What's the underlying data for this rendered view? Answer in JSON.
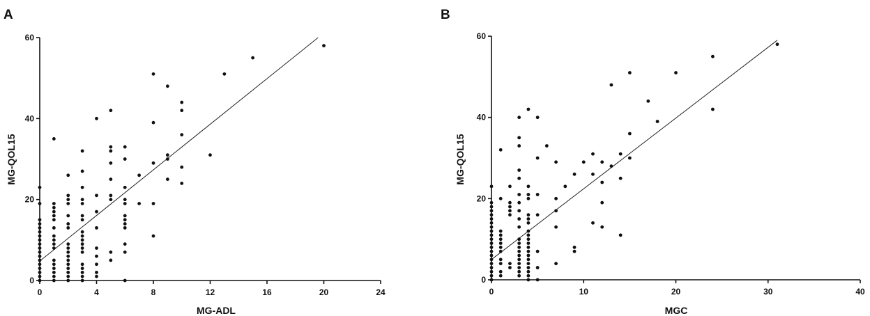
{
  "chart_data": [
    {
      "panel": "A",
      "type": "scatter",
      "xlabel": "MG-ADL",
      "ylabel": "MG-QOL15",
      "xlim": [
        0,
        24
      ],
      "ylim": [
        0,
        60
      ],
      "xticks": [
        0,
        4,
        8,
        12,
        16,
        20,
        24
      ],
      "yticks": [
        0,
        20,
        40,
        60
      ],
      "grid": false,
      "colors": {
        "points": "#111111",
        "line": "#222222"
      },
      "fit_line": {
        "x": [
          0,
          19.6
        ],
        "y": [
          4.8,
          60
        ]
      },
      "points": [
        [
          0,
          0
        ],
        [
          0,
          1
        ],
        [
          0,
          2
        ],
        [
          0,
          3
        ],
        [
          0,
          4
        ],
        [
          0,
          5
        ],
        [
          0,
          6
        ],
        [
          0,
          7
        ],
        [
          0,
          8
        ],
        [
          0,
          9
        ],
        [
          0,
          10
        ],
        [
          0,
          11
        ],
        [
          0,
          12
        ],
        [
          0,
          13
        ],
        [
          0,
          14
        ],
        [
          0,
          15
        ],
        [
          0,
          19
        ],
        [
          0,
          23
        ],
        [
          1,
          0
        ],
        [
          1,
          1
        ],
        [
          1,
          2
        ],
        [
          1,
          3
        ],
        [
          1,
          4
        ],
        [
          1,
          5
        ],
        [
          1,
          8
        ],
        [
          1,
          9
        ],
        [
          1,
          10
        ],
        [
          1,
          11
        ],
        [
          1,
          13
        ],
        [
          1,
          15
        ],
        [
          1,
          16
        ],
        [
          1,
          17
        ],
        [
          1,
          18
        ],
        [
          1,
          19
        ],
        [
          1,
          35
        ],
        [
          2,
          0
        ],
        [
          2,
          1
        ],
        [
          2,
          2
        ],
        [
          2,
          3
        ],
        [
          2,
          4
        ],
        [
          2,
          5
        ],
        [
          2,
          6
        ],
        [
          2,
          7
        ],
        [
          2,
          8
        ],
        [
          2,
          9
        ],
        [
          2,
          13
        ],
        [
          2,
          14
        ],
        [
          2,
          16
        ],
        [
          2,
          19
        ],
        [
          2,
          20
        ],
        [
          2,
          21
        ],
        [
          2,
          26
        ],
        [
          3,
          0
        ],
        [
          3,
          1
        ],
        [
          3,
          2
        ],
        [
          3,
          3
        ],
        [
          3,
          4
        ],
        [
          3,
          7
        ],
        [
          3,
          8
        ],
        [
          3,
          9
        ],
        [
          3,
          10
        ],
        [
          3,
          11
        ],
        [
          3,
          12
        ],
        [
          3,
          15
        ],
        [
          3,
          16
        ],
        [
          3,
          19
        ],
        [
          3,
          20
        ],
        [
          3,
          23
        ],
        [
          3,
          27
        ],
        [
          3,
          32
        ],
        [
          4,
          1
        ],
        [
          4,
          2
        ],
        [
          4,
          4
        ],
        [
          4,
          6
        ],
        [
          4,
          8
        ],
        [
          4,
          13
        ],
        [
          4,
          17
        ],
        [
          4,
          21
        ],
        [
          4,
          40
        ],
        [
          5,
          5
        ],
        [
          5,
          7
        ],
        [
          5,
          20
        ],
        [
          5,
          21
        ],
        [
          5,
          25
        ],
        [
          5,
          29
        ],
        [
          5,
          32
        ],
        [
          5,
          33
        ],
        [
          5,
          42
        ],
        [
          6,
          0
        ],
        [
          6,
          7
        ],
        [
          6,
          9
        ],
        [
          6,
          13
        ],
        [
          6,
          14
        ],
        [
          6,
          15
        ],
        [
          6,
          16
        ],
        [
          6,
          19
        ],
        [
          6,
          20
        ],
        [
          6,
          23
        ],
        [
          6,
          30
        ],
        [
          6,
          33
        ],
        [
          7,
          19
        ],
        [
          7,
          26
        ],
        [
          8,
          11
        ],
        [
          8,
          19
        ],
        [
          8,
          29
        ],
        [
          8,
          39
        ],
        [
          8,
          51
        ],
        [
          9,
          25
        ],
        [
          9,
          30
        ],
        [
          9,
          31
        ],
        [
          9,
          48
        ],
        [
          10,
          24
        ],
        [
          10,
          28
        ],
        [
          10,
          36
        ],
        [
          10,
          42
        ],
        [
          10,
          44
        ],
        [
          12,
          31
        ],
        [
          13,
          51
        ],
        [
          15,
          55
        ],
        [
          20,
          58
        ]
      ]
    },
    {
      "panel": "B",
      "type": "scatter",
      "xlabel": "MGC",
      "ylabel": "MG-QOL15",
      "xlim": [
        0,
        40
      ],
      "ylim": [
        0,
        60
      ],
      "xticks": [
        0,
        10,
        20,
        30,
        40
      ],
      "yticks": [
        0,
        20,
        40,
        60
      ],
      "grid": false,
      "colors": {
        "points": "#111111",
        "line": "#222222"
      },
      "fit_line": {
        "x": [
          0,
          31
        ],
        "y": [
          5,
          59
        ]
      },
      "points": [
        [
          0,
          0
        ],
        [
          0,
          1
        ],
        [
          0,
          2
        ],
        [
          0,
          3
        ],
        [
          0,
          4
        ],
        [
          0,
          5
        ],
        [
          0,
          6
        ],
        [
          0,
          7
        ],
        [
          0,
          8
        ],
        [
          0,
          9
        ],
        [
          0,
          10
        ],
        [
          0,
          11
        ],
        [
          0,
          12
        ],
        [
          0,
          13
        ],
        [
          0,
          14
        ],
        [
          0,
          15
        ],
        [
          0,
          16
        ],
        [
          0,
          17
        ],
        [
          0,
          18
        ],
        [
          0,
          19
        ],
        [
          0,
          23
        ],
        [
          1,
          1
        ],
        [
          1,
          2
        ],
        [
          1,
          4
        ],
        [
          1,
          5
        ],
        [
          1,
          7
        ],
        [
          1,
          8
        ],
        [
          1,
          9
        ],
        [
          1,
          10
        ],
        [
          1,
          11
        ],
        [
          1,
          12
        ],
        [
          1,
          20
        ],
        [
          1,
          32
        ],
        [
          2,
          3
        ],
        [
          2,
          4
        ],
        [
          2,
          16
        ],
        [
          2,
          17
        ],
        [
          2,
          18
        ],
        [
          2,
          19
        ],
        [
          2,
          23
        ],
        [
          3,
          1
        ],
        [
          3,
          2
        ],
        [
          3,
          3
        ],
        [
          3,
          4
        ],
        [
          3,
          5
        ],
        [
          3,
          6
        ],
        [
          3,
          7
        ],
        [
          3,
          8
        ],
        [
          3,
          9
        ],
        [
          3,
          10
        ],
        [
          3,
          13
        ],
        [
          3,
          15
        ],
        [
          3,
          17
        ],
        [
          3,
          19
        ],
        [
          3,
          21
        ],
        [
          3,
          25
        ],
        [
          3,
          27
        ],
        [
          3,
          33
        ],
        [
          3,
          35
        ],
        [
          3,
          40
        ],
        [
          4,
          0
        ],
        [
          4,
          1
        ],
        [
          4,
          2
        ],
        [
          4,
          3
        ],
        [
          4,
          4
        ],
        [
          4,
          5
        ],
        [
          4,
          6
        ],
        [
          4,
          7
        ],
        [
          4,
          8
        ],
        [
          4,
          9
        ],
        [
          4,
          10
        ],
        [
          4,
          11
        ],
        [
          4,
          12
        ],
        [
          4,
          14
        ],
        [
          4,
          15
        ],
        [
          4,
          16
        ],
        [
          4,
          20
        ],
        [
          4,
          21
        ],
        [
          4,
          23
        ],
        [
          4,
          42
        ],
        [
          5,
          0
        ],
        [
          5,
          3
        ],
        [
          5,
          7
        ],
        [
          5,
          16
        ],
        [
          5,
          21
        ],
        [
          5,
          30
        ],
        [
          5,
          40
        ],
        [
          6,
          33
        ],
        [
          7,
          4
        ],
        [
          7,
          13
        ],
        [
          7,
          17
        ],
        [
          7,
          20
        ],
        [
          7,
          29
        ],
        [
          8,
          23
        ],
        [
          9,
          7
        ],
        [
          9,
          8
        ],
        [
          9,
          26
        ],
        [
          10,
          29
        ],
        [
          11,
          14
        ],
        [
          11,
          26
        ],
        [
          11,
          31
        ],
        [
          12,
          13
        ],
        [
          12,
          19
        ],
        [
          12,
          24
        ],
        [
          12,
          29
        ],
        [
          13,
          28
        ],
        [
          13,
          48
        ],
        [
          14,
          11
        ],
        [
          14,
          25
        ],
        [
          14,
          31
        ],
        [
          15,
          30
        ],
        [
          15,
          36
        ],
        [
          15,
          51
        ],
        [
          17,
          44
        ],
        [
          18,
          39
        ],
        [
          20,
          51
        ],
        [
          24,
          42
        ],
        [
          24,
          55
        ],
        [
          31,
          58
        ]
      ]
    }
  ],
  "panels": {
    "a": {
      "label": "A",
      "xlabel": "MG-ADL",
      "ylabel": "MG-QOL15"
    },
    "b": {
      "label": "B",
      "xlabel": "MGC",
      "ylabel": "MG-QOL15"
    }
  }
}
